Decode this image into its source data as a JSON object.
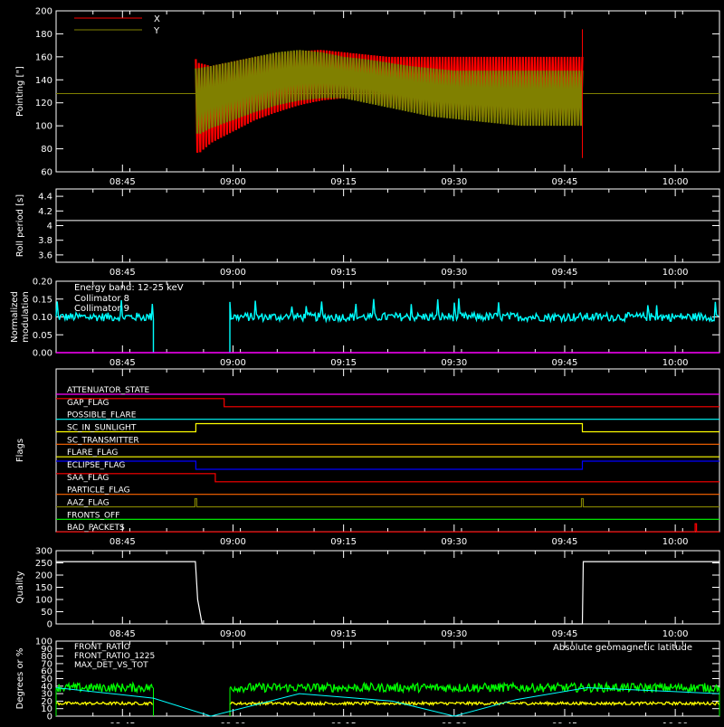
{
  "time_axis": {
    "tick_labels": [
      "08:45",
      "09:00",
      "09:15",
      "09:30",
      "09:45",
      "10:00"
    ],
    "tick_hours": [
      8.75,
      9.0,
      9.25,
      9.5,
      9.75,
      10.0
    ],
    "range_hours": [
      8.6,
      10.1
    ]
  },
  "colors": {
    "background": "#000000",
    "axes": "#ffffff",
    "x_red": "#ff0000",
    "y_olive": "#808000",
    "cyan": "#00ffff",
    "magenta": "#ff00ff",
    "green": "#00ff00",
    "yellow": "#ffff00",
    "orange": "#ff6600",
    "blue": "#0000ff"
  },
  "chart_data": [
    {
      "id": "pointing",
      "type": "area",
      "ylabel": "Pointing [\"]",
      "ylim": [
        60,
        200
      ],
      "yticks": [
        60,
        80,
        100,
        120,
        140,
        160,
        180,
        200
      ],
      "series": [
        {
          "name": "X",
          "color": "#ff0000",
          "x": [
            8.916,
            8.92,
            8.95,
            9.0,
            9.05,
            9.1,
            9.15,
            9.2,
            9.25,
            9.3,
            9.35,
            9.4,
            9.45,
            9.5,
            9.55,
            9.6,
            9.65,
            9.7,
            9.75,
            9.79
          ],
          "upper": [
            158,
            155,
            152,
            156,
            160,
            162,
            165,
            166,
            164,
            162,
            160,
            160,
            160,
            160,
            160,
            160,
            160,
            160,
            160,
            160
          ],
          "lower": [
            85,
            75,
            85,
            95,
            105,
            112,
            118,
            122,
            124,
            122,
            118,
            115,
            112,
            110,
            108,
            107,
            106,
            105,
            105,
            105
          ]
        },
        {
          "name": "Y",
          "color": "#808000",
          "x": [
            8.916,
            8.92,
            8.95,
            9.0,
            9.05,
            9.1,
            9.15,
            9.2,
            9.25,
            9.3,
            9.35,
            9.4,
            9.45,
            9.5,
            9.55,
            9.6,
            9.65,
            9.7,
            9.75,
            9.79
          ],
          "upper": [
            150,
            150,
            152,
            156,
            160,
            164,
            166,
            164,
            160,
            158,
            155,
            152,
            150,
            148,
            148,
            148,
            148,
            148,
            148,
            148
          ],
          "lower": [
            100,
            92,
            98,
            105,
            112,
            118,
            122,
            124,
            124,
            120,
            116,
            112,
            108,
            106,
            104,
            102,
            100,
            100,
            100,
            100
          ]
        }
      ],
      "y_reference_line": 128
    },
    {
      "id": "roll",
      "type": "line",
      "ylabel": "Roll period [s]",
      "ylim": [
        3.5,
        4.5
      ],
      "yticks": [
        3.6,
        3.8,
        4.0,
        4.2,
        4.4
      ],
      "series": [
        {
          "name": "",
          "color": "#ffffff",
          "x": [
            8.6,
            10.1
          ],
          "y": [
            4.07,
            4.07
          ]
        }
      ]
    },
    {
      "id": "modulation",
      "type": "line",
      "ylabel": "Normalized modulation",
      "ylim": [
        0.0,
        0.2
      ],
      "yticks": [
        0.0,
        0.05,
        0.1,
        0.15,
        0.2
      ],
      "ytick_labels": [
        "0.00",
        "0.05",
        "0.10",
        "0.15",
        "0.20"
      ],
      "annotation": "Energy band: 12-25 keV",
      "series": [
        {
          "name": "Collimator 8",
          "color": "#00ffff",
          "segments": [
            [
              8.6,
              8.82
            ],
            [
              8.993,
              10.1
            ]
          ],
          "level": 0.1,
          "noise": 0.012
        },
        {
          "name": "Collimator 9",
          "color": "#ff00ff",
          "segments": [
            [
              8.6,
              10.1
            ]
          ],
          "level": 0.0
        }
      ]
    },
    {
      "id": "flags",
      "type": "line",
      "ylabel": "Flags",
      "flags": [
        {
          "name": "ATTENUATOR_STATE",
          "color": "#ff00ff",
          "high": []
        },
        {
          "name": "GAP_FLAG",
          "color": "#ff0000",
          "high": [
            [
              8.6,
              8.98
            ]
          ]
        },
        {
          "name": "POSSIBLE_FLARE",
          "color": "#00ffff",
          "high": []
        },
        {
          "name": "SC_IN_SUNLIGHT",
          "color": "#ffff00",
          "high": [
            [
              8.916,
              9.79
            ]
          ]
        },
        {
          "name": "SC_TRANSMITTER",
          "color": "#ff6600",
          "high": []
        },
        {
          "name": "FLARE_FLAG",
          "color": "#ffff00",
          "high": []
        },
        {
          "name": "ECLIPSE_FLAG",
          "color": "#0000ff",
          "high": [
            [
              8.6,
              8.916
            ],
            [
              9.79,
              10.1
            ]
          ]
        },
        {
          "name": "SAA_FLAG",
          "color": "#ff0000",
          "high": [
            [
              8.6,
              8.96
            ]
          ]
        },
        {
          "name": "PARTICLE_FLAG",
          "color": "#ff6600",
          "high": []
        },
        {
          "name": "AAZ_FLAG",
          "color": "#808000",
          "high": [
            [
              8.914,
              8.918
            ],
            [
              9.788,
              9.792
            ]
          ]
        },
        {
          "name": "FRONTS_OFF",
          "color": "#00ff00",
          "high": []
        },
        {
          "name": "BAD_PACKETS",
          "color": "#ff0000",
          "high": [
            [
              10.045,
              10.048
            ]
          ]
        }
      ]
    },
    {
      "id": "quality",
      "type": "line",
      "ylabel": "Quality",
      "ylim": [
        0,
        300
      ],
      "yticks": [
        0,
        50,
        100,
        150,
        200,
        250,
        300
      ],
      "series": [
        {
          "name": "",
          "color": "#ffffff",
          "x": [
            8.6,
            8.915,
            8.92,
            8.93,
            9.785,
            9.79,
            9.792,
            10.1
          ],
          "y": [
            255,
            255,
            100,
            0,
            0,
            0,
            255,
            255
          ]
        }
      ]
    },
    {
      "id": "ratios",
      "type": "line",
      "ylabel": "Degrees or %",
      "ylim": [
        0,
        100
      ],
      "yticks": [
        0,
        10,
        20,
        30,
        40,
        50,
        60,
        70,
        80,
        90,
        100
      ],
      "annotation": "Absolute geomagnetic latitude",
      "series": [
        {
          "name": "FRONT_RATIO",
          "color": "#ffff00",
          "level": 17,
          "noise": 2,
          "segments": [
            [
              8.6,
              8.82
            ],
            [
              8.993,
              10.1
            ]
          ]
        },
        {
          "name": "FRONT_RATIO_1225",
          "color": "#00ff00",
          "level": 38,
          "noise": 6,
          "segments": [
            [
              8.6,
              8.82
            ],
            [
              8.993,
              10.1
            ]
          ]
        },
        {
          "name": "MAX_DET_VS_TOT",
          "color": "#ff6600",
          "level": 0,
          "noise": 0,
          "segments": []
        },
        {
          "name": "Absolute geomagnetic latitude",
          "color": "#00ffff",
          "x": [
            8.6,
            8.82,
            8.95,
            9.15,
            9.36,
            9.5,
            9.64,
            9.8,
            10.1
          ],
          "y": [
            38,
            24,
            0,
            30,
            20,
            0,
            22,
            38,
            30
          ]
        }
      ]
    }
  ]
}
